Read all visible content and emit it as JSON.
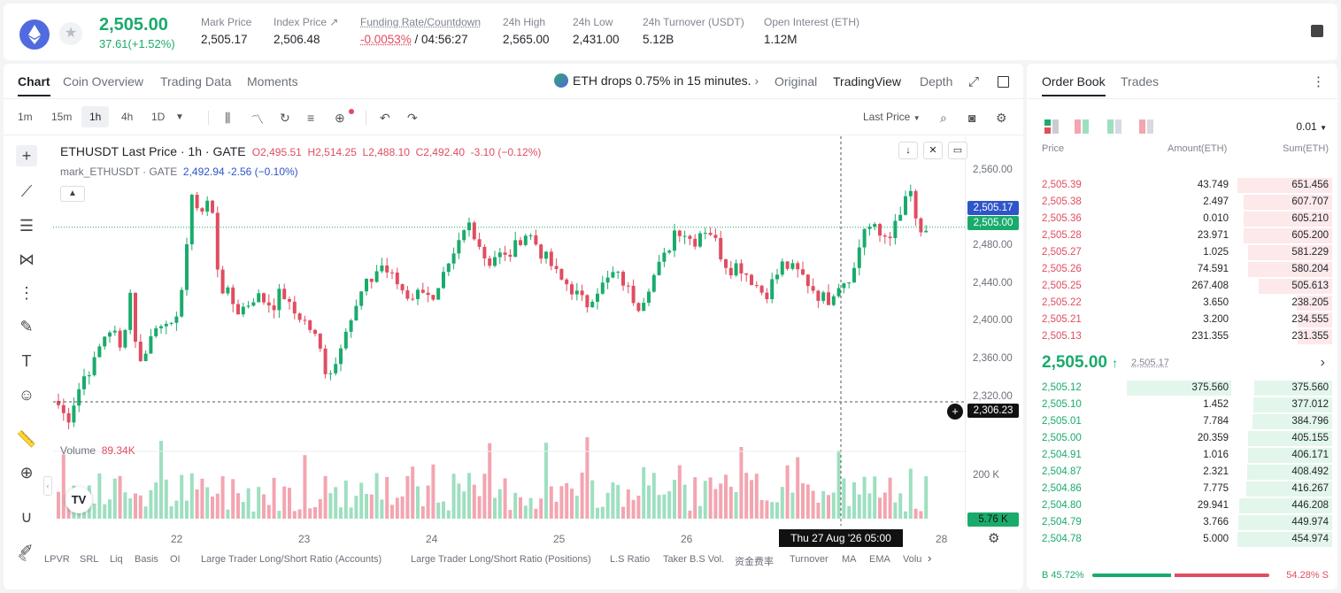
{
  "header": {
    "price": "2,505.00",
    "change": "37.61(+1.52%)",
    "stats": [
      {
        "label": "Mark Price",
        "value": "2,505.17"
      },
      {
        "label": "Index Price ↗",
        "value": "2,506.48"
      },
      {
        "label": "Funding Rate/Countdown",
        "value_neg": "-0.0053%",
        "value": " / 04:56:27"
      },
      {
        "label": "24h High",
        "value": "2,565.00"
      },
      {
        "label": "24h Low",
        "value": "2,431.00"
      },
      {
        "label": "24h Turnover (USDT)",
        "value": "5.12B"
      },
      {
        "label": "Open Interest (ETH)",
        "value": "1.12M"
      }
    ]
  },
  "chart_tabs": [
    "Chart",
    "Coin Overview",
    "Trading Data",
    "Moments"
  ],
  "news": "ETH drops 0.75% in 15 minutes.",
  "view_tabs": [
    "Original",
    "TradingView",
    "Depth"
  ],
  "timeframes": [
    "1m",
    "15m",
    "1h",
    "4h",
    "1D"
  ],
  "price_type": "Last Price",
  "legend": {
    "symbol": "ETHUSDT Last Price · 1h · GATE",
    "o": "O2,495.51",
    "h": "H2,514.25",
    "l": "L2,488.10",
    "c": "C2,492.40",
    "chg": "-3.10 (−0.12%)",
    "mark": "mark_ETHUSDT · GATE",
    "mark_val": "2,492.94  -2.56 (−0.10%)"
  },
  "volume": {
    "label": "Volume",
    "value": "89.34K",
    "axis": "200 K",
    "current": "5.76 K"
  },
  "y_axis": {
    "ticks": [
      "2,560.00",
      "2,520.00",
      "2,480.00",
      "2,440.00",
      "2,400.00",
      "2,360.00",
      "2,320.00"
    ],
    "mark_badge": "2,505.17",
    "last_badge": "2,505.00",
    "cross_badge": "2,306.23"
  },
  "x_axis": [
    "22",
    "23",
    "24",
    "25",
    "26",
    "28"
  ],
  "crosshair_time": "Thu 27 Aug '26   05:00",
  "indicators": [
    "LPVR",
    "SRL",
    "Liq",
    "Basis",
    "OI",
    "Large Trader Long/Short Ratio (Accounts)",
    "Large Trader Long/Short Ratio (Positions)",
    "L.S Ratio",
    "Taker B.S Vol.",
    "资金费率",
    "Turnover",
    "MA",
    "EMA",
    "Volu"
  ],
  "colors": {
    "up": "#1aab6c",
    "down": "#e04d60",
    "up_vol": "#9edfc0",
    "down_vol": "#f3a5b0"
  },
  "orderbook": {
    "tabs": [
      "Order Book",
      "Trades"
    ],
    "precision": "0.01",
    "headers": [
      "Price",
      "Amount(ETH)",
      "Sum(ETH)"
    ],
    "asks": [
      {
        "price": "2,505.39",
        "amount": "43.749",
        "sum": "651.456",
        "depth": 1.0
      },
      {
        "price": "2,505.38",
        "amount": "2.497",
        "sum": "607.707",
        "depth": 0.93
      },
      {
        "price": "2,505.36",
        "amount": "0.010",
        "sum": "605.210",
        "depth": 0.93
      },
      {
        "price": "2,505.28",
        "amount": "23.971",
        "sum": "605.200",
        "depth": 0.93
      },
      {
        "price": "2,505.27",
        "amount": "1.025",
        "sum": "581.229",
        "depth": 0.89
      },
      {
        "price": "2,505.26",
        "amount": "74.591",
        "sum": "580.204",
        "depth": 0.89
      },
      {
        "price": "2,505.25",
        "amount": "267.408",
        "sum": "505.613",
        "depth": 0.78
      },
      {
        "price": "2,505.22",
        "amount": "3.650",
        "sum": "238.205",
        "depth": 0.37
      },
      {
        "price": "2,505.21",
        "amount": "3.200",
        "sum": "234.555",
        "depth": 0.36
      },
      {
        "price": "2,505.13",
        "amount": "231.355",
        "sum": "231.355",
        "depth": 0.36
      }
    ],
    "mid": {
      "price": "2,505.00",
      "mark": "2,505.17"
    },
    "bids": [
      {
        "price": "2,505.12",
        "amount": "375.560",
        "sum": "375.560",
        "depth": 0.82,
        "adepth": 1.0
      },
      {
        "price": "2,505.10",
        "amount": "1.452",
        "sum": "377.012",
        "depth": 0.83,
        "adepth": 0
      },
      {
        "price": "2,505.01",
        "amount": "7.784",
        "sum": "384.796",
        "depth": 0.84,
        "adepth": 0
      },
      {
        "price": "2,505.00",
        "amount": "20.359",
        "sum": "405.155",
        "depth": 0.89,
        "adepth": 0
      },
      {
        "price": "2,504.91",
        "amount": "1.016",
        "sum": "406.171",
        "depth": 0.89,
        "adepth": 0
      },
      {
        "price": "2,504.87",
        "amount": "2.321",
        "sum": "408.492",
        "depth": 0.9,
        "adepth": 0
      },
      {
        "price": "2,504.86",
        "amount": "7.775",
        "sum": "416.267",
        "depth": 0.91,
        "adepth": 0
      },
      {
        "price": "2,504.80",
        "amount": "29.941",
        "sum": "446.208",
        "depth": 0.98,
        "adepth": 0
      },
      {
        "price": "2,504.79",
        "amount": "3.766",
        "sum": "449.974",
        "depth": 0.99,
        "adepth": 0
      },
      {
        "price": "2,504.78",
        "amount": "5.000",
        "sum": "454.974",
        "depth": 1.0,
        "adepth": 0
      }
    ],
    "buy_ratio": "B 45.72%",
    "sell_ratio": "54.28% S",
    "buy_fraction": 0.4572
  }
}
